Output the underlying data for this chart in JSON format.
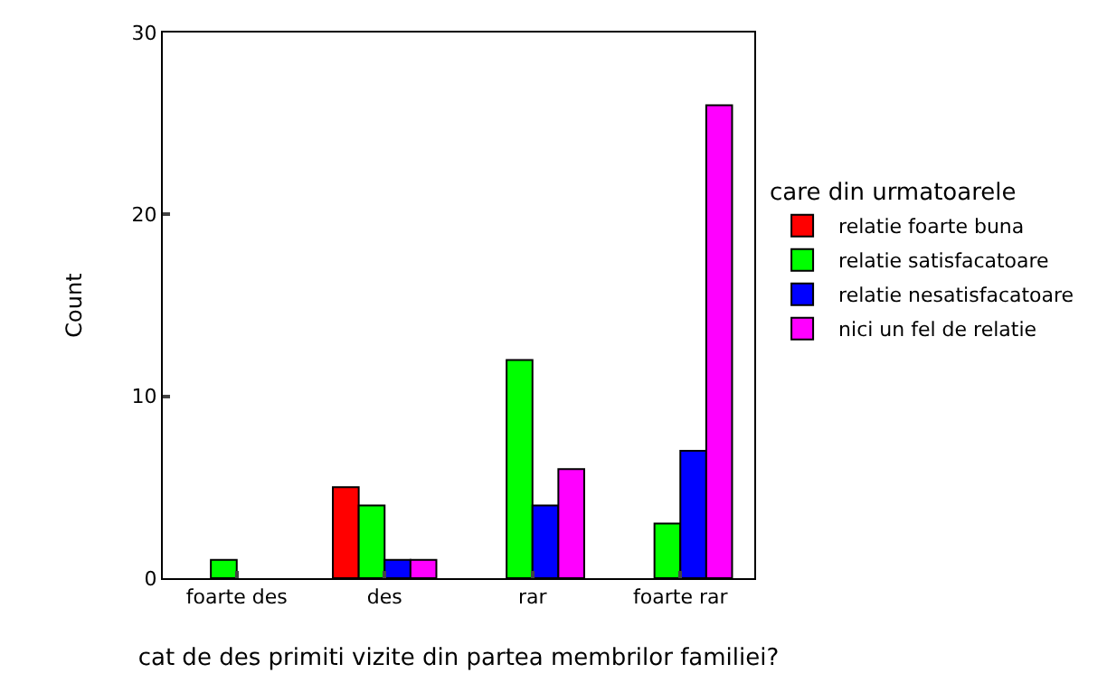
{
  "chart_data": {
    "type": "bar",
    "xlabel": "cat de des primiti vizite din partea membrilor familiei?",
    "ylabel": "Count",
    "legend_title": "care din urmatoarele",
    "categories": [
      "foarte des",
      "des",
      "rar",
      "foarte rar"
    ],
    "series": [
      {
        "name": "relatie foarte buna",
        "color": "#ff0000",
        "values": [
          null,
          5,
          null,
          null
        ]
      },
      {
        "name": "relatie satisfacatoare",
        "color": "#00ff00",
        "values": [
          1,
          4,
          12,
          3
        ]
      },
      {
        "name": "relatie nesatisfacatoare",
        "color": "#0000ff",
        "values": [
          null,
          1,
          4,
          7
        ]
      },
      {
        "name": "nici un fel de relatie",
        "color": "#ff00ff",
        "values": [
          null,
          1,
          6,
          26
        ]
      }
    ],
    "ylim": [
      0,
      30
    ],
    "yticks": [
      0,
      10,
      20,
      30
    ],
    "grid": false,
    "legend": "right"
  }
}
